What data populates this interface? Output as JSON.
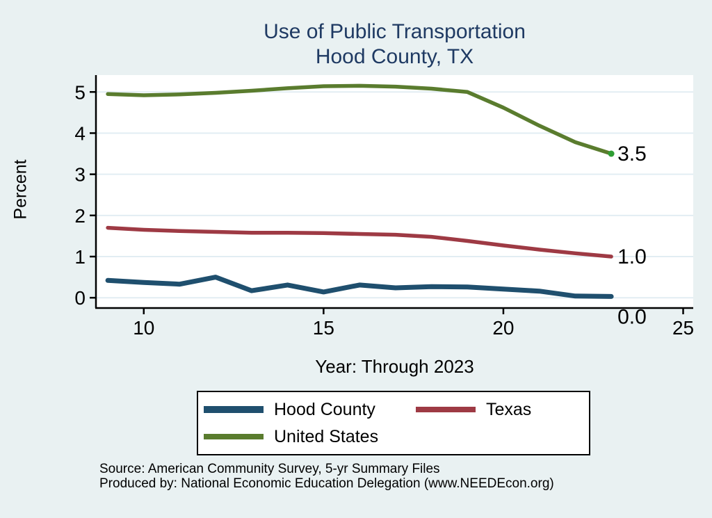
{
  "title": {
    "line1": "Use of Public Transportation",
    "line2": "Hood County, TX"
  },
  "caption": "Year: Through 2023",
  "y_axis_title": "Percent",
  "source": {
    "line1": "Source: American Community Survey, 5-yr Summary Files",
    "line2": "Produced by: National Economic Education Delegation (www.NEEDEcon.org)"
  },
  "colors": {
    "background": "#e9f1f2",
    "plot_background": "#ffffff",
    "gridline": "#e2edf3",
    "axis": "#000000",
    "title_text": "#1f3a63"
  },
  "legend": {
    "entries": [
      {
        "label": "Hood County",
        "color": "#1f4f6e",
        "swatch_height": 10
      },
      {
        "label": "Texas",
        "color": "#9e3a44",
        "swatch_height": 8
      },
      {
        "label": "United States",
        "color": "#5a7c2e",
        "swatch_height": 8
      }
    ]
  },
  "chart_data": {
    "type": "line",
    "title": "Use of Public Transportation, Hood County, TX",
    "xlabel": "Year: Through 2023",
    "ylabel": "Percent",
    "x": [
      9,
      10,
      11,
      12,
      13,
      14,
      15,
      16,
      17,
      18,
      19,
      20,
      21,
      22,
      23
    ],
    "xticks": [
      10,
      15,
      20,
      25
    ],
    "yticks": [
      0,
      1,
      2,
      3,
      4,
      5
    ],
    "xlim": [
      8.67,
      25.28
    ],
    "ylim": [
      -0.25,
      5.41
    ],
    "grid": true,
    "legend_position": "bottom",
    "series": [
      {
        "name": "Hood County",
        "id": "hood-county",
        "color": "#1f4f6e",
        "line_width": 7,
        "values": [
          0.42,
          0.37,
          0.33,
          0.5,
          0.17,
          0.31,
          0.14,
          0.31,
          0.24,
          0.27,
          0.26,
          0.21,
          0.16,
          0.04,
          0.03
        ],
        "end_label": "0.0"
      },
      {
        "name": "Texas",
        "id": "texas",
        "color": "#9e3a44",
        "line_width": 5.5,
        "values": [
          1.7,
          1.65,
          1.62,
          1.6,
          1.58,
          1.58,
          1.57,
          1.55,
          1.53,
          1.48,
          1.38,
          1.27,
          1.17,
          1.08,
          1.0
        ],
        "end_label": "1.0"
      },
      {
        "name": "United States",
        "id": "united-states",
        "color": "#5a7c2e",
        "line_width": 5.5,
        "values": [
          4.95,
          4.92,
          4.94,
          4.98,
          5.03,
          5.09,
          5.14,
          5.15,
          5.13,
          5.08,
          5.0,
          4.62,
          4.18,
          3.78,
          3.5
        ],
        "end_label": "3.5",
        "end_marker_color": "#2f9e33"
      }
    ]
  }
}
